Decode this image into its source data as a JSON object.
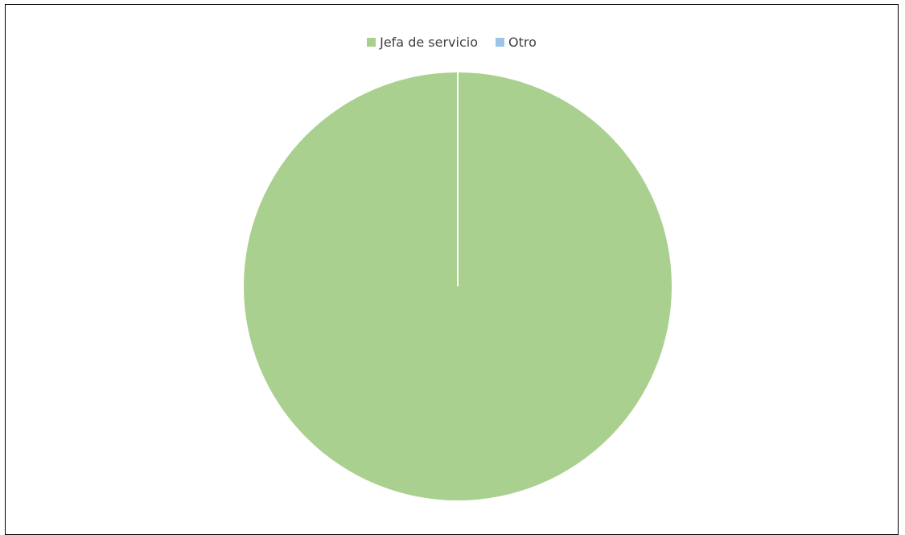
{
  "colors": {
    "jefa": "#a9d08e",
    "otro": "#9dc3e6",
    "separator": "#ffffff"
  },
  "chart_data": {
    "type": "pie",
    "title": "",
    "legend_position": "top",
    "categories": [
      "Jefa de servicio",
      "Otro"
    ],
    "values": [
      100,
      0
    ],
    "series": [
      {
        "values": [
          100,
          0
        ]
      }
    ]
  }
}
